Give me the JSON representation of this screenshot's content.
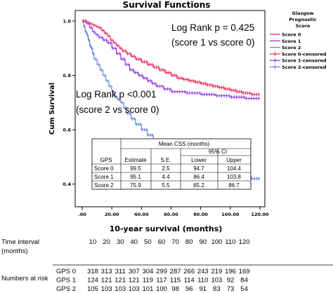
{
  "chart_data": {
    "type": "line",
    "title": "Survival Functions",
    "xlabel": "10-year survival (months)",
    "ylabel": "Cum Survival",
    "xlim": [
      0,
      120
    ],
    "ylim": [
      0.35,
      1.0
    ],
    "x_ticks": [
      ".00",
      "20.00",
      "40.00",
      "60.00",
      "80.00",
      "100.00",
      "120.00"
    ],
    "x_tick_values": [
      0,
      20,
      40,
      60,
      80,
      100,
      120
    ],
    "y_ticks": [
      "0.4",
      "0.6",
      "0.8",
      "1.0"
    ],
    "y_tick_values": [
      0.4,
      0.6,
      0.8,
      1.0
    ],
    "legend": {
      "title_lines": [
        "Glasgow",
        "Prognostic",
        "Score"
      ],
      "placement": "right",
      "entries": [
        "Score 0",
        "Score 1",
        "Score 2",
        "Score 0-censored",
        "Score 1-censored",
        "Score 2-censored"
      ]
    },
    "series": [
      {
        "name": "Score 0",
        "color": "#e8204f",
        "points": [
          [
            0,
            1.0
          ],
          [
            2,
            1.0
          ],
          [
            3,
            0.995
          ],
          [
            5,
            0.99
          ],
          [
            7,
            0.985
          ],
          [
            9,
            0.98
          ],
          [
            11,
            0.975
          ],
          [
            13,
            0.965
          ],
          [
            15,
            0.955
          ],
          [
            17,
            0.945
          ],
          [
            19,
            0.93
          ],
          [
            21,
            0.92
          ],
          [
            23,
            0.91
          ],
          [
            25,
            0.9
          ],
          [
            27,
            0.89
          ],
          [
            30,
            0.88
          ],
          [
            33,
            0.87
          ],
          [
            36,
            0.86
          ],
          [
            40,
            0.85
          ],
          [
            44,
            0.84
          ],
          [
            48,
            0.83
          ],
          [
            52,
            0.82
          ],
          [
            56,
            0.81
          ],
          [
            60,
            0.8
          ],
          [
            64,
            0.79
          ],
          [
            68,
            0.785
          ],
          [
            72,
            0.78
          ],
          [
            76,
            0.775
          ],
          [
            80,
            0.77
          ],
          [
            84,
            0.765
          ],
          [
            88,
            0.76
          ],
          [
            92,
            0.755
          ],
          [
            96,
            0.75
          ],
          [
            100,
            0.745
          ],
          [
            104,
            0.74
          ],
          [
            108,
            0.735
          ],
          [
            114,
            0.73
          ],
          [
            120,
            0.73
          ]
        ]
      },
      {
        "name": "Score 1",
        "color": "#8a2be2",
        "points": [
          [
            0,
            1.0
          ],
          [
            3,
            0.99
          ],
          [
            5,
            0.975
          ],
          [
            7,
            0.96
          ],
          [
            9,
            0.95
          ],
          [
            11,
            0.94
          ],
          [
            14,
            0.93
          ],
          [
            17,
            0.92
          ],
          [
            20,
            0.9
          ],
          [
            23,
            0.88
          ],
          [
            26,
            0.86
          ],
          [
            29,
            0.84
          ],
          [
            32,
            0.82
          ],
          [
            35,
            0.81
          ],
          [
            38,
            0.8
          ],
          [
            41,
            0.79
          ],
          [
            44,
            0.78
          ],
          [
            47,
            0.77
          ],
          [
            50,
            0.76
          ],
          [
            55,
            0.75
          ],
          [
            60,
            0.74
          ],
          [
            70,
            0.735
          ],
          [
            80,
            0.73
          ],
          [
            90,
            0.725
          ],
          [
            100,
            0.72
          ],
          [
            110,
            0.715
          ],
          [
            120,
            0.715
          ]
        ]
      },
      {
        "name": "Score 2",
        "color": "#5b7fd6",
        "points": [
          [
            0,
            1.0
          ],
          [
            1,
            0.98
          ],
          [
            2,
            0.96
          ],
          [
            3,
            0.95
          ],
          [
            4,
            0.93
          ],
          [
            5,
            0.91
          ],
          [
            6,
            0.9
          ],
          [
            7,
            0.88
          ],
          [
            8,
            0.86
          ],
          [
            10,
            0.84
          ],
          [
            12,
            0.82
          ],
          [
            14,
            0.8
          ],
          [
            16,
            0.78
          ],
          [
            18,
            0.76
          ],
          [
            20,
            0.74
          ],
          [
            22,
            0.72
          ],
          [
            24,
            0.71
          ],
          [
            26,
            0.7
          ],
          [
            28,
            0.68
          ],
          [
            30,
            0.66
          ],
          [
            33,
            0.64
          ],
          [
            36,
            0.62
          ],
          [
            40,
            0.6
          ],
          [
            44,
            0.58
          ],
          [
            48,
            0.56
          ],
          [
            52,
            0.545
          ],
          [
            56,
            0.535
          ],
          [
            60,
            0.52
          ],
          [
            64,
            0.51
          ],
          [
            68,
            0.5
          ],
          [
            70,
            0.47
          ],
          [
            72,
            0.44
          ],
          [
            90,
            0.44
          ],
          [
            100,
            0.44
          ],
          [
            104,
            0.44
          ],
          [
            106,
            0.43
          ],
          [
            112,
            0.43
          ],
          [
            114,
            0.42
          ],
          [
            120,
            0.42
          ]
        ]
      }
    ]
  },
  "annotations": {
    "logrank1_line1": "Log Rank p = 0.425",
    "logrank1_line2": "(score 1 vs score 0)",
    "logrank2_line1": "Log Rank p <0.001",
    "logrank2_line2": "(score 2 vs score 0)"
  },
  "css_table": {
    "header_top": "Mean CSS (months)",
    "header_ci": "95% CI",
    "columns": [
      "GPS",
      "Estimate",
      "S.E.",
      "Lower",
      "Upper"
    ],
    "rows": [
      [
        "Score 0",
        "99.5",
        "2.5",
        "94.7",
        "104.4"
      ],
      [
        "Score 1",
        "95.1",
        "4.4",
        "86.4",
        "103.8"
      ],
      [
        "Score 2",
        "75.9",
        "5.5",
        "65.2",
        "86.7"
      ]
    ]
  },
  "risk_table": {
    "time_label_line1": "Time interval",
    "time_label_line2": "(months)",
    "times": [
      "10",
      "20",
      "30",
      "40",
      "50",
      "60",
      "70",
      "80",
      "90",
      "100",
      "110",
      "120"
    ],
    "numbers_label": "Numbers at risk",
    "rows": [
      {
        "label": "GPS 0",
        "values": [
          "318",
          "313",
          "311",
          "307",
          "304",
          "299",
          "287",
          "266",
          "243",
          "219",
          "196",
          "169"
        ]
      },
      {
        "label": "GPS 1",
        "values": [
          "124",
          "121",
          "121",
          "121",
          "119",
          "117",
          "115",
          "114",
          "110",
          "103",
          "92",
          "84"
        ]
      },
      {
        "label": "GPS 2",
        "values": [
          "105",
          "103",
          "103",
          "103",
          "101",
          "100",
          "98",
          "96",
          "91",
          "83",
          "73",
          "54"
        ]
      }
    ]
  }
}
